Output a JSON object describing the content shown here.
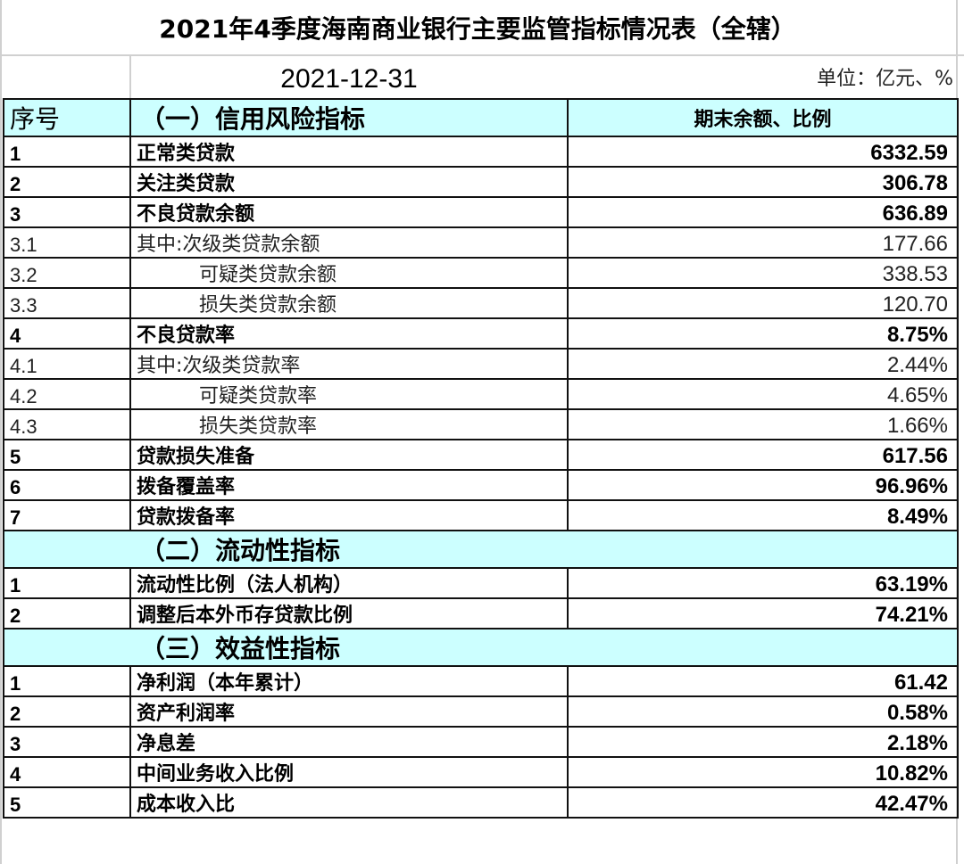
{
  "title": "2021年4季度海南商业银行主要监管指标情况表（全辖）",
  "date": "2021-12-31",
  "unit": "单位：亿元、%",
  "header": {
    "col_no": "序号",
    "col_item": "（一）信用风险指标",
    "col_value": "期末余额、比例"
  },
  "header_bg": "#ccffff",
  "rows": [
    {
      "type": "row",
      "no": "1",
      "item": "正常类贷款",
      "value": "6332.59",
      "bold": true
    },
    {
      "type": "row",
      "no": "2",
      "item": "关注类贷款",
      "value": "306.78",
      "bold": true
    },
    {
      "type": "row",
      "no": "3",
      "item": "不良贷款余额",
      "value": "636.89",
      "bold": true
    },
    {
      "type": "row",
      "no": "3.1",
      "item": "其中:次级类贷款余额",
      "value": "177.66",
      "bold": false
    },
    {
      "type": "row",
      "no": "3.2",
      "item": "可疑类贷款余额",
      "value": "338.53",
      "bold": false,
      "indent": true
    },
    {
      "type": "row",
      "no": "3.3",
      "item": "损失类贷款余额",
      "value": "120.70",
      "bold": false,
      "indent": true
    },
    {
      "type": "row",
      "no": "4",
      "item": "不良贷款率",
      "value": "8.75%",
      "bold": true
    },
    {
      "type": "row",
      "no": "4.1",
      "item": "其中:次级类贷款率",
      "value": "2.44%",
      "bold": false
    },
    {
      "type": "row",
      "no": "4.2",
      "item": "可疑类贷款率",
      "value": "4.65%",
      "bold": false,
      "indent": true
    },
    {
      "type": "row",
      "no": "4.3",
      "item": "损失类贷款率",
      "value": "1.66%",
      "bold": false,
      "indent": true
    },
    {
      "type": "row",
      "no": "5",
      "item": "贷款损失准备",
      "value": "617.56",
      "bold": true
    },
    {
      "type": "row",
      "no": "6",
      "item": "拨备覆盖率",
      "value": "96.96%",
      "bold": true
    },
    {
      "type": "row",
      "no": "7",
      "item": "贷款拨备率",
      "value": "8.49%",
      "bold": true
    },
    {
      "type": "section",
      "item": "（二）流动性指标"
    },
    {
      "type": "row",
      "no": "1",
      "item": "流动性比例（法人机构）",
      "value": "63.19%",
      "bold": true
    },
    {
      "type": "row",
      "no": "2",
      "item": "调整后本外币存贷款比例",
      "value": "74.21%",
      "bold": true
    },
    {
      "type": "section",
      "item": "（三）效益性指标"
    },
    {
      "type": "row",
      "no": "1",
      "item": "净利润（本年累计）",
      "value": "61.42",
      "bold": true
    },
    {
      "type": "row",
      "no": "2",
      "item": "资产利润率",
      "value": "0.58%",
      "bold": true
    },
    {
      "type": "row",
      "no": "3",
      "item": "净息差",
      "value": "2.18%",
      "bold": true
    },
    {
      "type": "row",
      "no": "4",
      "item": "中间业务收入比例",
      "value": "10.82%",
      "bold": true
    },
    {
      "type": "row",
      "no": "5",
      "item": "成本收入比",
      "value": "42.47%",
      "bold": true
    }
  ]
}
